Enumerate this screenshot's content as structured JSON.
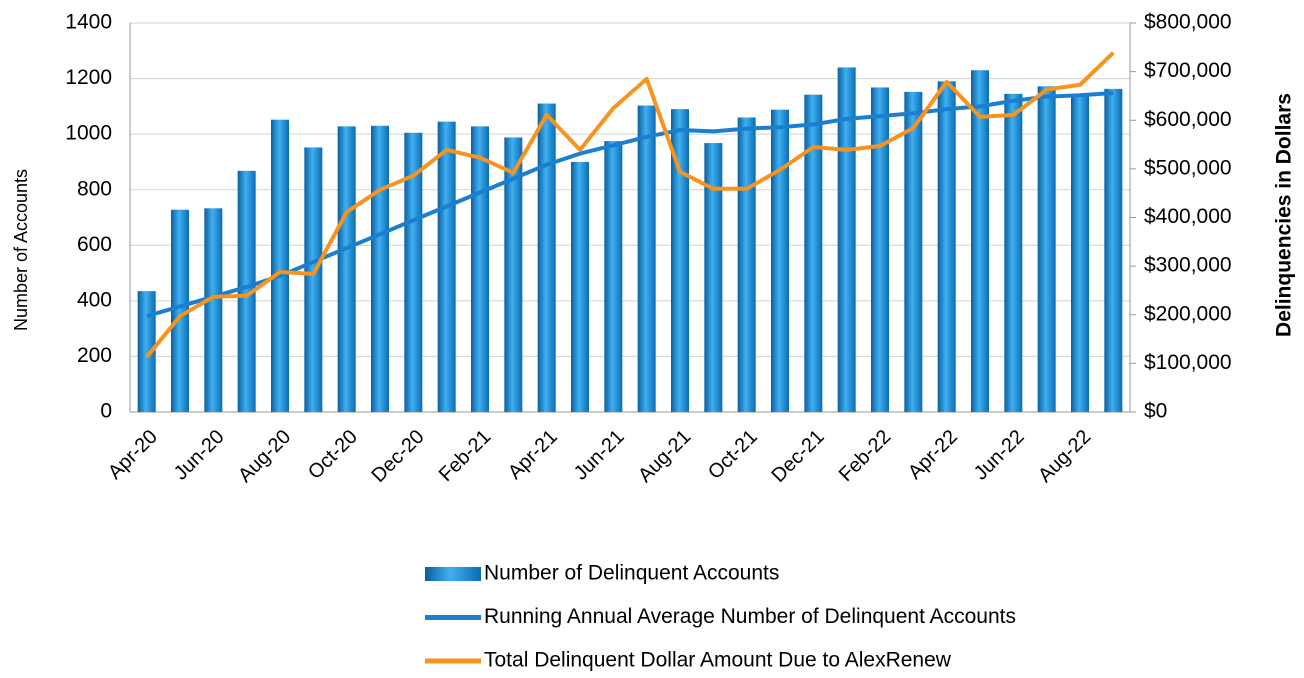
{
  "chart_data": {
    "type": "bar-line",
    "categories": [
      "Apr-20",
      null,
      "Jun-20",
      null,
      "Aug-20",
      null,
      "Oct-20",
      null,
      "Dec-20",
      null,
      "Feb-21",
      null,
      "Apr-21",
      null,
      "Jun-21",
      null,
      "Aug-21",
      null,
      "Oct-21",
      null,
      "Dec-21",
      null,
      "Feb-22",
      null,
      "Apr-22",
      null,
      "Jun-22",
      null,
      "Aug-22",
      null
    ],
    "y_label": "Number of Accounts",
    "y2_label": "Delinquencies in Dollars",
    "ylim": [
      0,
      1400
    ],
    "yticks": [
      0,
      200,
      400,
      600,
      800,
      1000,
      1200,
      1400
    ],
    "y2lim": [
      0,
      800000
    ],
    "y2ticks": [
      {
        "value": 0,
        "label": "$0"
      },
      {
        "value": 100000,
        "label": "$100,000"
      },
      {
        "value": 200000,
        "label": "$200,000"
      },
      {
        "value": 300000,
        "label": "$300,000"
      },
      {
        "value": 400000,
        "label": "$400,000"
      },
      {
        "value": 500000,
        "label": "$500,000"
      },
      {
        "value": 600000,
        "label": "$600,000"
      },
      {
        "value": 700000,
        "label": "$700,000"
      },
      {
        "value": 800000,
        "label": "$800,000"
      }
    ],
    "grid": true,
    "series": [
      {
        "name": "Number of Delinquent Accounts",
        "kind": "bar",
        "color": "#1a8fd6",
        "values": [
          435,
          728,
          733,
          868,
          1052,
          952,
          1028,
          1030,
          1005,
          1045,
          1028,
          988,
          1110,
          900,
          975,
          1103,
          1090,
          968,
          1060,
          1088,
          1142,
          1240,
          1168,
          1152,
          1190,
          1230,
          1145,
          1172,
          1140,
          1163
        ]
      },
      {
        "name": "Running Annual Average Number of Delinquent Accounts",
        "kind": "line",
        "color": "#1a7fd0",
        "values": [
          345,
          380,
          415,
          450,
          490,
          540,
          590,
          640,
          690,
          740,
          790,
          840,
          890,
          930,
          960,
          990,
          1015,
          1010,
          1020,
          1025,
          1035,
          1055,
          1065,
          1075,
          1090,
          1100,
          1120,
          1135,
          1140,
          1148
        ]
      },
      {
        "name": "Total Delinquent Dollar Amount Due to AlexRenew",
        "kind": "line",
        "axis": "y2",
        "color": "#f7931e",
        "values": [
          113000,
          197000,
          237000,
          239000,
          288000,
          284000,
          411000,
          457000,
          486000,
          539000,
          523000,
          492000,
          611000,
          539000,
          625000,
          685000,
          494000,
          459000,
          459000,
          498000,
          545000,
          539000,
          547000,
          584000,
          679000,
          607000,
          611000,
          663000,
          673000,
          739000
        ]
      }
    ]
  }
}
